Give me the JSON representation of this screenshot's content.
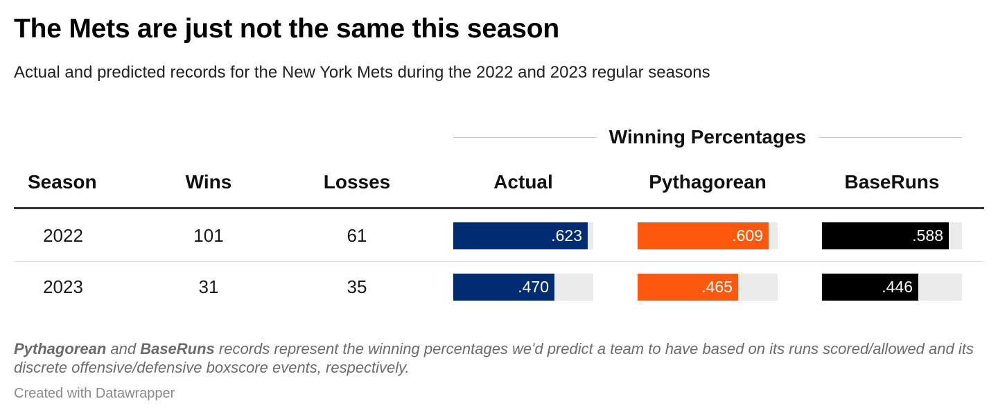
{
  "title": "The Mets are just not the same this season",
  "subtitle": "Actual and predicted records for the New York Mets during the 2022 and 2023 regular seasons",
  "group_header": "Winning Percentages",
  "columns": {
    "season": "Season",
    "wins": "Wins",
    "losses": "Losses",
    "actual": "Actual",
    "pythagorean": "Pythagorean",
    "baseruns": "BaseRuns"
  },
  "colors": {
    "actual": "#002d72",
    "pythagorean": "#ff5910",
    "baseruns": "#000000",
    "track": "#ebebeb"
  },
  "rows": [
    {
      "season": "2022",
      "wins": "101",
      "losses": "61",
      "actual": ".623",
      "pythagorean": ".609",
      "baseruns": ".588"
    },
    {
      "season": "2023",
      "wins": "31",
      "losses": "35",
      "actual": ".470",
      "pythagorean": ".465",
      "baseruns": ".446"
    }
  ],
  "chart_data": {
    "type": "table",
    "columns": [
      "Season",
      "Wins",
      "Losses",
      "Actual",
      "Pythagorean",
      "BaseRuns"
    ],
    "rows": [
      [
        "2022",
        101,
        61,
        0.623,
        0.609,
        0.588
      ],
      [
        "2023",
        31,
        35,
        0.47,
        0.465,
        0.446
      ]
    ]
  },
  "note": {
    "term1": "Pythagorean",
    "and": " and ",
    "term2": "BaseRuns",
    "rest": " records represent the winning percentages we'd predict a team to have based on its runs scored/allowed and its discrete offensive/defensive boxscore events, respectively."
  },
  "credit": "Created with Datawrapper"
}
